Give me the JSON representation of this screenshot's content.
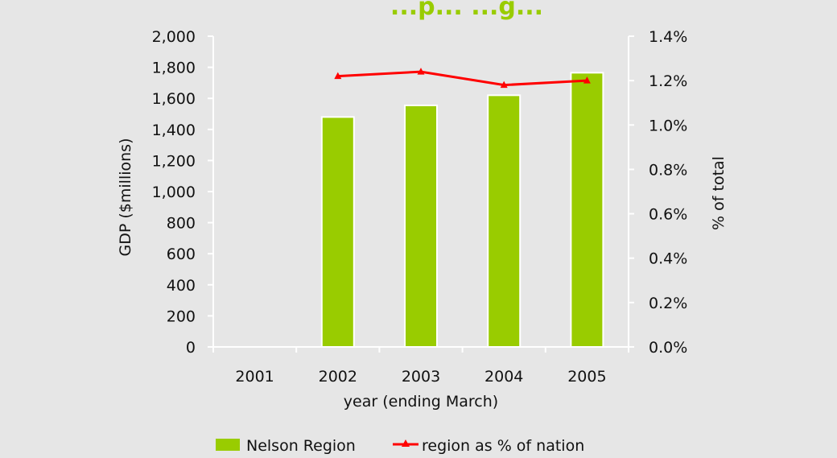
{
  "chart_data": {
    "type": "bar",
    "title": "...p... ...g...",
    "xlabel": "year (ending March)",
    "ylabel": "GDP ($millions)",
    "y2label": "% of total",
    "categories": [
      "2001",
      "2002",
      "2003",
      "2004",
      "2005"
    ],
    "ylim": [
      0,
      2000
    ],
    "y_ticks": [
      "0",
      "200",
      "400",
      "600",
      "800",
      "1,000",
      "1,200",
      "1,400",
      "1,600",
      "1,800",
      "2,000"
    ],
    "y2lim": [
      0,
      1.4
    ],
    "y2_ticks": [
      "0.0%",
      "0.2%",
      "0.4%",
      "0.6%",
      "0.8%",
      "1.0%",
      "1.2%",
      "1.4%"
    ],
    "grid": false,
    "legend_position": "bottom",
    "series": [
      {
        "name": "Nelson Region",
        "type": "bar",
        "axis": "left",
        "values": [
          null,
          1480,
          1555,
          1620,
          1765
        ],
        "color": "#99cc00"
      },
      {
        "name": "region as % of nation",
        "type": "line",
        "axis": "right",
        "values": [
          null,
          1.22,
          1.24,
          1.18,
          1.2
        ],
        "color": "#ff0000"
      }
    ],
    "colors": {
      "background": "#e6e6e6",
      "title": "#99cc00",
      "axis": "#ffffff"
    }
  }
}
